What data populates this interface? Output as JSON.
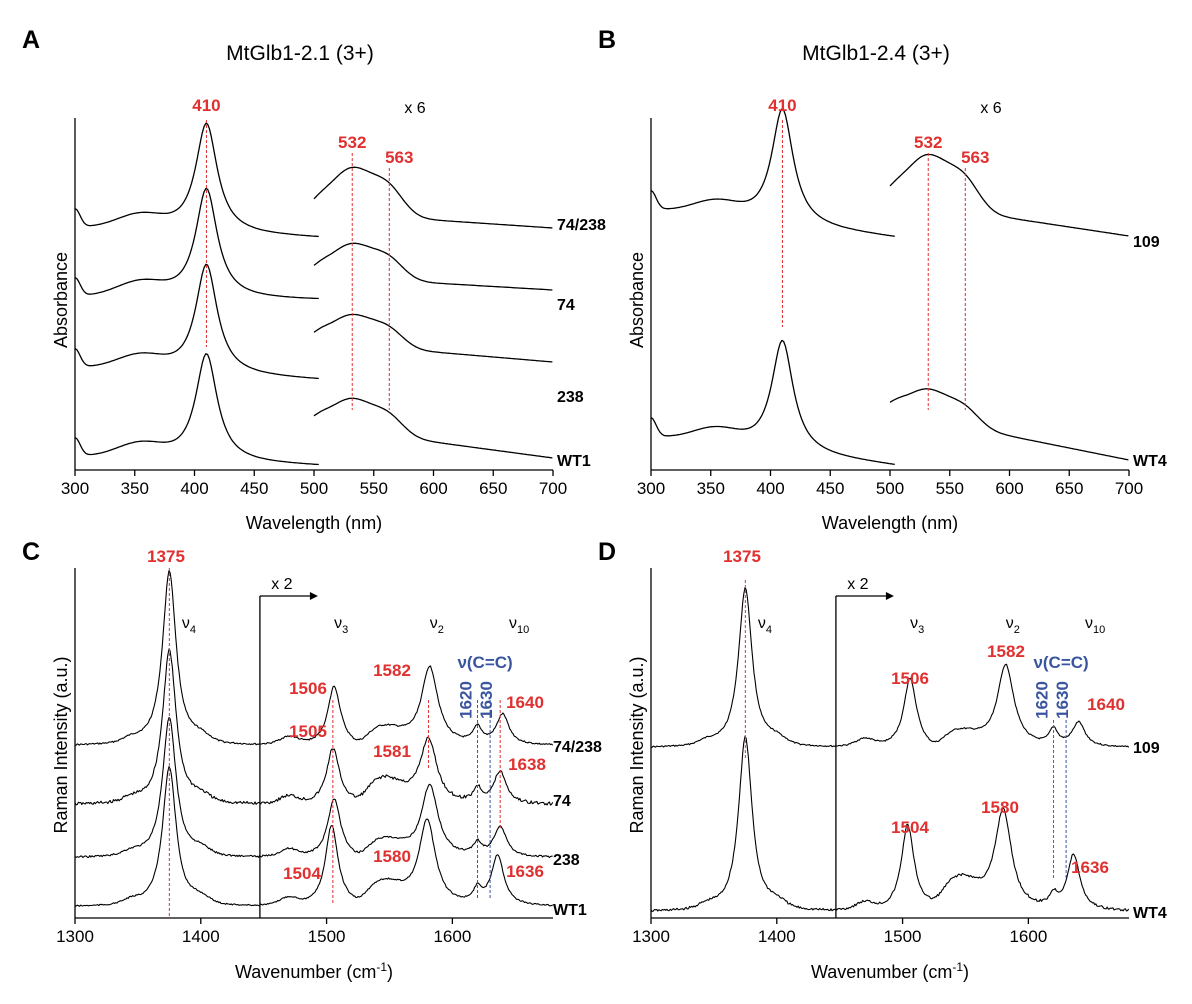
{
  "figure": {
    "panel_letters": [
      "A",
      "B",
      "C",
      "D"
    ]
  },
  "chart_data": [
    {
      "panel": "A",
      "type": "line",
      "title": "MtGlb1-2.1 (3+)",
      "xlabel": "Wavelength (nm)",
      "ylabel": "Absorbance",
      "xlim": [
        300,
        700
      ],
      "xticks": [
        300,
        350,
        400,
        450,
        500,
        550,
        600,
        650,
        700
      ],
      "scale_note": "x 6",
      "peak_labels": [
        410,
        532,
        563
      ],
      "series": [
        {
          "name": "74/238",
          "soret_peak": 410,
          "q_bands": [
            532,
            563
          ]
        },
        {
          "name": "74",
          "soret_peak": 410,
          "q_bands": [
            532,
            563
          ]
        },
        {
          "name": "238",
          "soret_peak": 410,
          "q_bands": [
            532,
            563
          ]
        },
        {
          "name": "WT1",
          "soret_peak": 410,
          "q_bands": [
            532,
            563
          ]
        }
      ]
    },
    {
      "panel": "B",
      "type": "line",
      "title": "MtGlb1-2.4 (3+)",
      "xlabel": "Wavelength (nm)",
      "ylabel": "Absorbance",
      "xlim": [
        300,
        700
      ],
      "xticks": [
        300,
        350,
        400,
        450,
        500,
        550,
        600,
        650,
        700
      ],
      "scale_note": "x 6",
      "peak_labels": [
        410,
        532,
        563
      ],
      "series": [
        {
          "name": "109",
          "soret_peak": 410,
          "q_bands": [
            532,
            563
          ]
        },
        {
          "name": "WT4",
          "soret_peak": 410,
          "q_bands": [
            532,
            563
          ]
        }
      ]
    },
    {
      "panel": "C",
      "type": "line",
      "xlabel": "Wavenumber (cm",
      "xlabel_sup": "-1",
      "xlabel_end": ")",
      "ylabel": "Raman Intensity (a.u.)",
      "xlim": [
        1300,
        1680
      ],
      "xticks": [
        1300,
        1400,
        1500,
        1600
      ],
      "scale_note": "x 2",
      "scale_start": 1447,
      "bands": [
        {
          "symbol": "ν",
          "sub": "4",
          "x": 1385
        },
        {
          "symbol": "ν",
          "sub": "3",
          "x": 1506
        },
        {
          "symbol": "ν",
          "sub": "2",
          "x": 1582
        },
        {
          "symbol": "ν",
          "sub": "10",
          "x": 1645
        }
      ],
      "vinyl_label": "ν(C=C)",
      "vinyl_bands": [
        "1620",
        "1630"
      ],
      "series": [
        {
          "name": "74/238",
          "peaks": [
            {
              "label": "1375",
              "x": 1375
            },
            {
              "label": "1506",
              "x": 1506
            },
            {
              "label": "1582",
              "x": 1582
            },
            {
              "label": "1640",
              "x": 1640
            }
          ]
        },
        {
          "name": "74",
          "peaks": [
            {
              "label": "1505",
              "x": 1505
            },
            {
              "label": "1581",
              "x": 1581
            },
            {
              "label": "1638",
              "x": 1638
            }
          ]
        },
        {
          "name": "238",
          "peaks": []
        },
        {
          "name": "WT1",
          "peaks": [
            {
              "label": "1504",
              "x": 1504
            },
            {
              "label": "1580",
              "x": 1580
            },
            {
              "label": "1636",
              "x": 1636
            }
          ]
        }
      ]
    },
    {
      "panel": "D",
      "type": "line",
      "xlabel": "Wavenumber (cm",
      "xlabel_sup": "-1",
      "xlabel_end": ")",
      "ylabel": "Raman Intensity (a.u.)",
      "xlim": [
        1300,
        1680
      ],
      "xticks": [
        1300,
        1400,
        1500,
        1600
      ],
      "scale_note": "x 2",
      "scale_start": 1447,
      "bands": [
        {
          "symbol": "ν",
          "sub": "4",
          "x": 1385
        },
        {
          "symbol": "ν",
          "sub": "3",
          "x": 1506
        },
        {
          "symbol": "ν",
          "sub": "2",
          "x": 1582
        },
        {
          "symbol": "ν",
          "sub": "10",
          "x": 1645
        }
      ],
      "vinyl_label": "ν(C=C)",
      "vinyl_bands": [
        "1620",
        "1630"
      ],
      "series": [
        {
          "name": "109",
          "peaks": [
            {
              "label": "1375",
              "x": 1375
            },
            {
              "label": "1506",
              "x": 1506
            },
            {
              "label": "1582",
              "x": 1582
            },
            {
              "label": "1640",
              "x": 1640
            }
          ]
        },
        {
          "name": "WT4",
          "peaks": [
            {
              "label": "1504",
              "x": 1504
            },
            {
              "label": "1580",
              "x": 1580
            },
            {
              "label": "1636",
              "x": 1636
            }
          ]
        }
      ]
    }
  ]
}
